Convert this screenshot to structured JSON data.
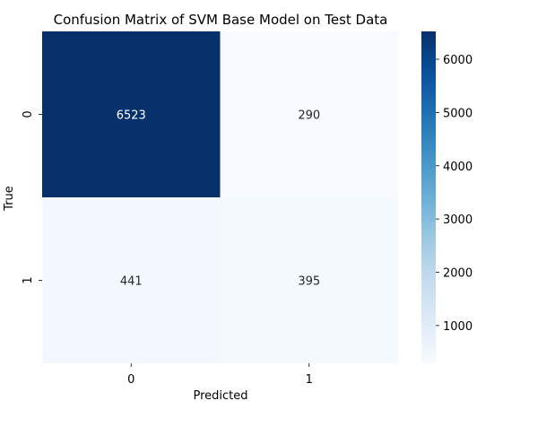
{
  "chart_data": {
    "type": "heatmap",
    "title": "Confusion Matrix of SVM Base Model on Test Data",
    "xlabel": "Predicted",
    "ylabel": "True",
    "x_categories": [
      "0",
      "1"
    ],
    "y_categories": [
      "0",
      "1"
    ],
    "values": [
      [
        6523,
        290
      ],
      [
        441,
        395
      ]
    ],
    "colormap": "Blues",
    "colorbar": {
      "min": 290,
      "max": 6523,
      "ticks": [
        1000,
        2000,
        3000,
        4000,
        5000,
        6000
      ]
    },
    "grid": false,
    "colors": {
      "low": "#f7fbff",
      "high": "#08306b"
    }
  }
}
